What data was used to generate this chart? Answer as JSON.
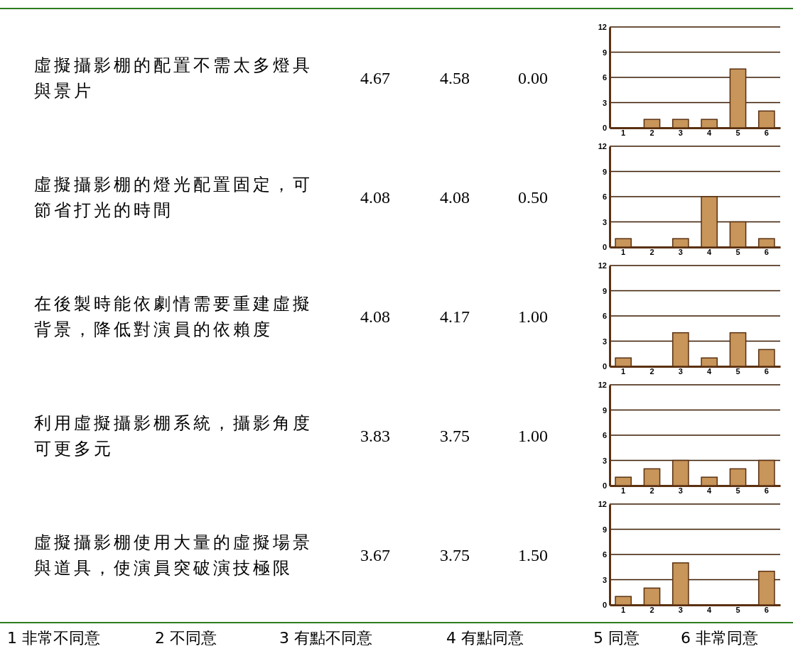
{
  "chart_data": [
    {
      "type": "bar",
      "ylabel": "虛擬攝影棚的配置不需太多燈具與景片",
      "annotations": [
        "4.67",
        "4.58",
        "0.00"
      ],
      "categories": [
        "1",
        "2",
        "3",
        "4",
        "5",
        "6"
      ],
      "values": [
        0,
        1,
        1,
        1,
        7,
        2
      ],
      "color": "#c8955a",
      "ylim": [
        0,
        12
      ],
      "yticks": [
        0,
        3,
        6,
        9,
        12
      ],
      "grid": "y"
    },
    {
      "type": "bar",
      "ylabel": "虛擬攝影棚的燈光配置固定，可節省打光的時間",
      "annotations": [
        "4.08",
        "4.08",
        "0.50"
      ],
      "categories": [
        "1",
        "2",
        "3",
        "4",
        "5",
        "6"
      ],
      "values": [
        1,
        0,
        1,
        6,
        3,
        1
      ],
      "color": "#c8955a",
      "ylim": [
        0,
        12
      ],
      "yticks": [
        0,
        3,
        6,
        9,
        12
      ],
      "grid": "y"
    },
    {
      "type": "bar",
      "ylabel": "在後製時能依劇情需要重建虛擬背景，降低對演員的依賴度",
      "annotations": [
        "4.08",
        "4.17",
        "1.00"
      ],
      "categories": [
        "1",
        "2",
        "3",
        "4",
        "5",
        "6"
      ],
      "values": [
        1,
        0,
        4,
        1,
        4,
        2
      ],
      "color": "#c8955a",
      "ylim": [
        0,
        12
      ],
      "yticks": [
        0,
        3,
        6,
        9,
        12
      ],
      "grid": "y"
    },
    {
      "type": "bar",
      "ylabel": "利用虛擬攝影棚系統，攝影角度可更多元",
      "annotations": [
        "3.83",
        "3.75",
        "1.00"
      ],
      "categories": [
        "1",
        "2",
        "3",
        "4",
        "5",
        "6"
      ],
      "values": [
        1,
        2,
        3,
        1,
        2,
        3
      ],
      "color": "#c8955a",
      "ylim": [
        0,
        12
      ],
      "yticks": [
        0,
        3,
        6,
        9,
        12
      ],
      "grid": "y"
    },
    {
      "type": "bar",
      "ylabel": "虛擬攝影棚使用大量的虛擬場景與道具，使演員突破演技極限",
      "annotations": [
        "3.67",
        "3.75",
        "1.50",
        "1 非常不同意",
        "2 不同意",
        "3 有點不同意",
        "4 有點同意",
        "5 同意",
        "6 非常同意"
      ],
      "categories": [
        "1",
        "2",
        "3",
        "4",
        "5",
        "6"
      ],
      "values": [
        1,
        2,
        5,
        0,
        0,
        4
      ],
      "color": "#c8955a",
      "ylim": [
        0,
        12
      ],
      "yticks": [
        0,
        3,
        6,
        9,
        12
      ],
      "grid": "y"
    }
  ]
}
